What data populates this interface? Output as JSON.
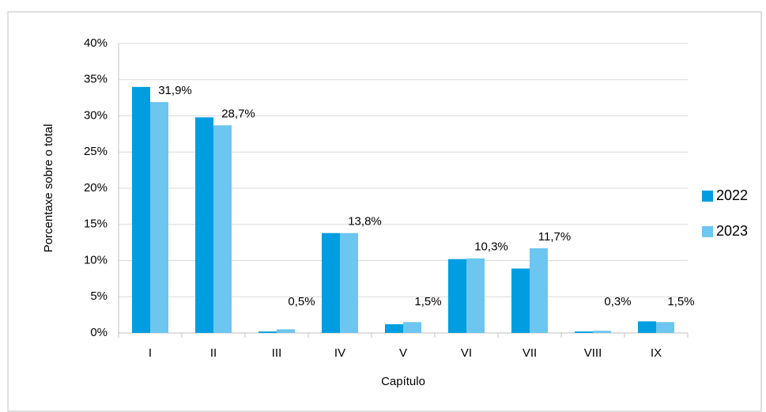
{
  "chart_data": {
    "type": "bar",
    "categories": [
      "I",
      "II",
      "III",
      "IV",
      "V",
      "VI",
      "VII",
      "VIII",
      "IX"
    ],
    "series": [
      {
        "name": "2022",
        "color": "#009ee0",
        "values": [
          34,
          29.8,
          0.2,
          13.8,
          1.2,
          10.2,
          8.9,
          0.2,
          1.6
        ]
      },
      {
        "name": "2023",
        "color": "#6cc6ef",
        "values": [
          31.9,
          28.7,
          0.5,
          13.8,
          1.5,
          10.3,
          11.7,
          0.3,
          1.5
        ],
        "value_labels": [
          "31,9%",
          "28,7%",
          "0,5%",
          "13,8%",
          "1,5%",
          "10,3%",
          "11,7%",
          "0,3%",
          "1,5%"
        ]
      }
    ],
    "ylabel": "Porcentaxe sobre o total",
    "xlabel": "Capítulo",
    "ylim": [
      0,
      40
    ],
    "yticks": [
      {
        "value": 0,
        "label": "0%"
      },
      {
        "value": 5,
        "label": "5%"
      },
      {
        "value": 10,
        "label": "10%"
      },
      {
        "value": 15,
        "label": "15%"
      },
      {
        "value": 20,
        "label": "20%"
      },
      {
        "value": 25,
        "label": "25%"
      },
      {
        "value": 30,
        "label": "30%"
      },
      {
        "value": 35,
        "label": "35%"
      },
      {
        "value": 40,
        "label": "40%"
      }
    ],
    "grid": true,
    "legend": "right"
  }
}
